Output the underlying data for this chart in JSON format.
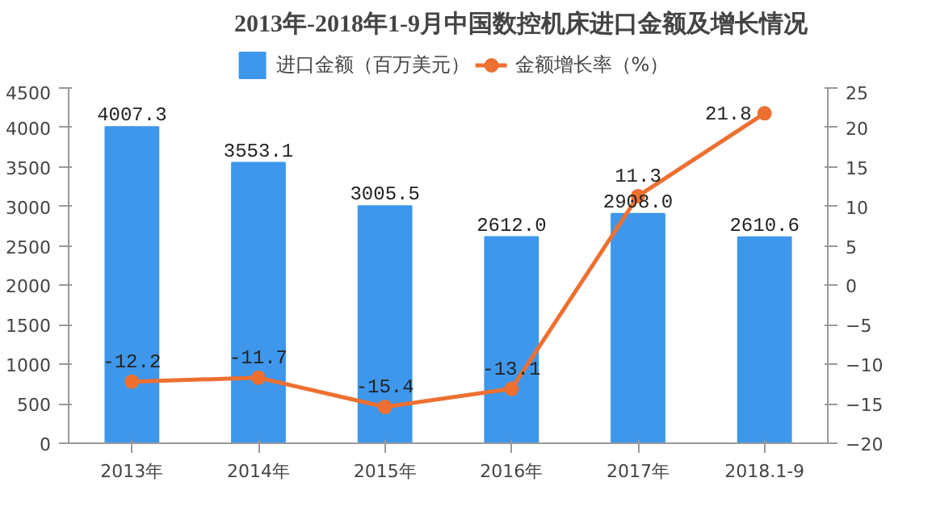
{
  "chart_data": {
    "type": "bar",
    "title": "2013年-2018年1-9月中国数控机床进口金额及增长情况",
    "categories": [
      "2013年",
      "2014年",
      "2015年",
      "2016年",
      "2017年",
      "2018.1-9"
    ],
    "series": [
      {
        "name": "进口金额（百万美元）",
        "color": "#3e97eb",
        "values": [
          4007.3,
          3553.1,
          3005.5,
          2612,
          2908,
          2610.6
        ],
        "value_labels": [
          "4007.3",
          "3553.1",
          "3005.5",
          "2612.0",
          "2908.0",
          "2610.6"
        ]
      },
      {
        "name": "金额增长率（%）",
        "type": "line",
        "axis": "y2",
        "color": "#ed7031",
        "values": [
          -12.2,
          -11.7,
          -15.4,
          -13.1,
          11.3,
          21.8
        ],
        "value_labels": [
          "-12.2",
          "-11.7",
          "-15.4",
          "-13.1",
          "11.3",
          "21.8"
        ]
      }
    ],
    "ylim": [
      0,
      4500
    ],
    "yticks": [
      0,
      500,
      1000,
      1500,
      2000,
      2500,
      3000,
      3500,
      4000,
      4500
    ],
    "y2lim": [
      -20,
      25
    ],
    "y2ticks": [
      -20,
      -15,
      -10,
      -5,
      0,
      5,
      10,
      15,
      20,
      25
    ],
    "legend": "top",
    "grid": false,
    "marker": "circle",
    "line_style": "solid"
  }
}
